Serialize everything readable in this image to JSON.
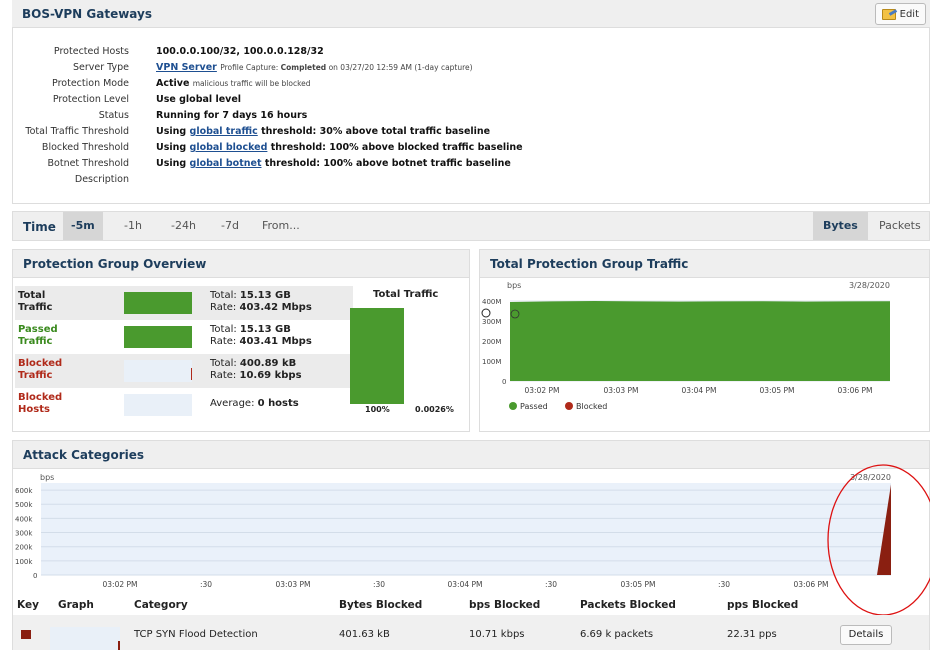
{
  "header": {
    "title": "BOS-VPN Gateways",
    "edit_label": "Edit"
  },
  "details": {
    "protected_hosts": {
      "label": "Protected Hosts",
      "value": "100.0.0.100/32, 100.0.0.128/32"
    },
    "server_type": {
      "label": "Server Type",
      "link": "VPN Server",
      "note_prefix": "Profile Capture:",
      "note_status": "Completed",
      "note_suffix": "on 03/27/20 12:59 AM (1-day capture)"
    },
    "protection_mode": {
      "label": "Protection Mode",
      "value": "Active",
      "note": "malicious traffic will be blocked"
    },
    "protection_level": {
      "label": "Protection Level",
      "value": "Use global level"
    },
    "status": {
      "label": "Status",
      "value": "Running for 7 days 16 hours"
    },
    "total_traffic_threshold": {
      "label": "Total Traffic Threshold",
      "prefix": "Using",
      "link": "global traffic",
      "suffix": "threshold: 30% above total traffic baseline"
    },
    "blocked_threshold": {
      "label": "Blocked Threshold",
      "prefix": "Using",
      "link": "global blocked",
      "suffix": "threshold: 100% above blocked traffic baseline"
    },
    "botnet_threshold": {
      "label": "Botnet Threshold",
      "prefix": "Using",
      "link": "global botnet",
      "suffix": "threshold: 100% above botnet traffic baseline"
    },
    "description": {
      "label": "Description",
      "value": ""
    }
  },
  "time_bar": {
    "label": "Time",
    "ranges": [
      "-5m",
      "-1h",
      "-24h",
      "-7d",
      "From..."
    ],
    "selected_range": "-5m",
    "units": [
      "Bytes",
      "Packets"
    ],
    "selected_unit": "Bytes"
  },
  "overview": {
    "title": "Protection Group Overview",
    "rows": [
      {
        "name_line1": "Total",
        "name_line2": "Traffic",
        "color": "#222222",
        "line1_label": "Total:",
        "line1_value": "15.13 GB",
        "line2_label": "Rate:",
        "line2_value": "403.42 Mbps",
        "fill_fraction": 1.0
      },
      {
        "name_line1": "Passed",
        "name_line2": "Traffic",
        "color": "#3a8a1e",
        "line1_label": "Total:",
        "line1_value": "15.13 GB",
        "line2_label": "Rate:",
        "line2_value": "403.41 Mbps",
        "fill_fraction": 1.0
      },
      {
        "name_line1": "Blocked",
        "name_line2": "Traffic",
        "color": "#b02a1a",
        "line1_label": "Total:",
        "line1_value": "400.89 kB",
        "line2_label": "Rate:",
        "line2_value": "10.69 kbps",
        "fill_fraction": 0.0
      },
      {
        "name_line1": "Blocked",
        "name_line2": "Hosts",
        "color": "#b02a1a",
        "line1_label": "Average:",
        "line1_value": "0 hosts",
        "line2_label": "",
        "line2_value": "",
        "fill_fraction": 0.0
      }
    ],
    "total_traffic": {
      "title": "Total Traffic",
      "passed_pct": "100%",
      "blocked_pct": "0.0026%"
    }
  },
  "tpgt": {
    "title": "Total Protection Group Traffic"
  },
  "attack": {
    "title": "Attack Categories",
    "columns": [
      "Key",
      "Graph",
      "Category",
      "Bytes Blocked",
      "bps Blocked",
      "Packets Blocked",
      "pps Blocked"
    ],
    "rows": [
      {
        "key_color": "#8a1f11",
        "category": "TCP SYN Flood Detection",
        "bytes_blocked": "401.63 kB",
        "bps_blocked": "10.71 kbps",
        "packets_blocked": "6.69 k packets",
        "pps_blocked": "22.31 pps",
        "action": "Details"
      }
    ]
  },
  "chart_data": [
    {
      "type": "area",
      "ylabel": "bps",
      "date": "3/28/2020",
      "y_ticks": [
        "0",
        "100M",
        "200M",
        "300M",
        "400M"
      ],
      "ylim": [
        0,
        400000000
      ],
      "x_ticks": [
        "03:02 PM",
        "03:03 PM",
        "03:04 PM",
        "03:05 PM",
        "03:06 PM"
      ],
      "x": [
        "03:01:45 PM",
        "03:02:30 PM",
        "03:03:00 PM",
        "03:03:30 PM",
        "03:04:00 PM",
        "03:04:30 PM",
        "03:05:00 PM",
        "03:05:30 PM",
        "03:06:00 PM",
        "03:06:30 PM"
      ],
      "series": [
        {
          "name": "Passed",
          "color": "#4a9a2e",
          "values": [
            395000000,
            398000000,
            400000000,
            398000000,
            397000000,
            398000000,
            399000000,
            397000000,
            398000000,
            399000000
          ]
        },
        {
          "name": "Blocked",
          "color": "#b02a1a",
          "values": [
            0,
            0,
            0,
            0,
            0,
            0,
            0,
            0,
            0,
            0
          ]
        }
      ],
      "legend": "bottom-left"
    },
    {
      "type": "area",
      "ylabel": "bps",
      "date": "3/28/2020",
      "y_ticks": [
        "0",
        "100k",
        "200k",
        "300k",
        "400k",
        "500k",
        "600k"
      ],
      "ylim": [
        0,
        650000
      ],
      "x_ticks": [
        "03:02 PM",
        ":30",
        "03:03 PM",
        ":30",
        "03:04 PM",
        ":30",
        "03:05 PM",
        ":30",
        "03:06 PM"
      ],
      "series": [
        {
          "name": "TCP SYN Flood Detection",
          "color": "#8a1f11",
          "spike_start_value": 0,
          "spike_peak_value": 640000
        }
      ],
      "highlight": "red circle around final spike"
    }
  ]
}
